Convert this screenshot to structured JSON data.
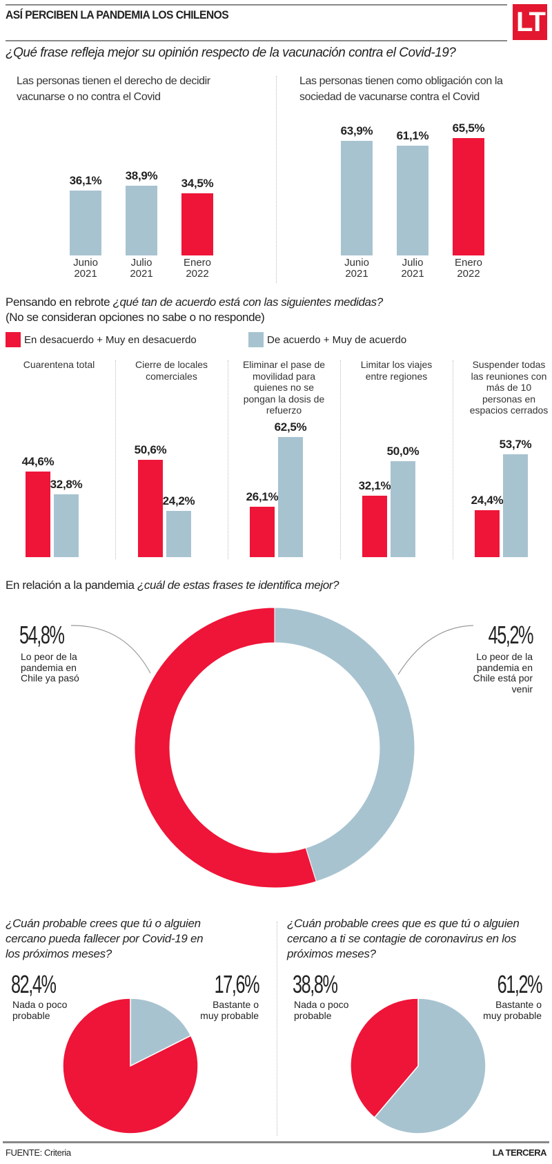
{
  "header": {
    "title": "ASÍ PERCIBEN LA PANDEMIA LOS CHILENOS",
    "logo": "LT"
  },
  "colors": {
    "red": "#ee1538",
    "blue": "#a8c3d0",
    "rule": "#888888"
  },
  "section1": {
    "question": "¿Qué frase refleja mejor su opinión respecto de la vacunación contra el Covid-19?",
    "left_label_1": "Las personas tienen el derecho de decidir",
    "left_label_2": "vacunarse o no contra el Covid",
    "right_label_1": "Las personas tienen como obligación con la",
    "right_label_2": "sociedad de vacunarse contra el Covid"
  },
  "section2": {
    "question_plain": "Pensando en rebrote ",
    "question_italic": "¿qué tan de acuerdo está con las siguientes medidas?",
    "note": "(No se consideran opciones no sabe o no responde)",
    "legend_red": "En desacuerdo + Muy en desacuerdo",
    "legend_blue": "De acuerdo + Muy de acuerdo"
  },
  "section3": {
    "question_plain": "En relación a la pandemia ",
    "question_italic": "¿cuál de estas frases te identifica mejor?"
  },
  "section4": {
    "left_question": "¿Cuán probable crees que tú o alguien cercano pueda fallecer por Covid-19 en los próximos meses?",
    "left_q_lines": [
      "¿Cuán probable crees que tú o alguien",
      "cercano pueda fallecer por Covid-19 en",
      "los próximos meses?"
    ],
    "right_q_lines": [
      "¿Cuán probable crees que es que tú o alguien",
      "cercano a ti se contagie de coronavirus en los",
      "próximos meses?"
    ]
  },
  "footer": {
    "source_label": "FUENTE:",
    "source": "Criteria",
    "brand": "LA TERCERA"
  },
  "chart_data": [
    {
      "type": "bar",
      "title": "Las personas tienen el derecho de decidir vacunarse o no contra el Covid",
      "categories": [
        "Junio 2021",
        "Julio 2021",
        "Enero 2022"
      ],
      "category_lines": [
        [
          "Junio",
          "2021"
        ],
        [
          "Julio",
          "2021"
        ],
        [
          "Enero",
          "2022"
        ]
      ],
      "values": [
        36.1,
        38.9,
        34.5
      ],
      "labels": [
        "36,1%",
        "38,9%",
        "34,5%"
      ],
      "highlight": [
        false,
        false,
        true
      ],
      "ylim": [
        0,
        100
      ]
    },
    {
      "type": "bar",
      "title": "Las personas tienen como obligación con la sociedad de vacunarse contra el Covid",
      "categories": [
        "Junio 2021",
        "Julio 2021",
        "Enero 2022"
      ],
      "category_lines": [
        [
          "Junio",
          "2021"
        ],
        [
          "Julio",
          "2021"
        ],
        [
          "Enero",
          "2022"
        ]
      ],
      "values": [
        63.9,
        61.1,
        65.5
      ],
      "labels": [
        "63,9%",
        "61,1%",
        "65,5%"
      ],
      "highlight": [
        false,
        false,
        true
      ],
      "ylim": [
        0,
        100
      ]
    },
    {
      "type": "bar",
      "title": "Pensando en rebrote ¿qué tan de acuerdo está con las siguientes medidas?",
      "categories": [
        "Cuarentena total",
        "Cierre de locales comerciales",
        "Eliminar el pase de movilidad para quienes no se pongan la dosis de refuerzo",
        "Limitar los viajes entre regiones",
        "Suspender todas las reuniones con más de 10 personas en espacios cerrados"
      ],
      "category_lines": [
        [
          "Cuarentena total"
        ],
        [
          "Cierre de locales",
          "comerciales"
        ],
        [
          "Eliminar el pase de",
          "movilidad para",
          "quienes no se",
          "pongan la dosis de",
          "refuerzo"
        ],
        [
          "Limitar los viajes",
          "entre regiones"
        ],
        [
          "Suspender todas",
          "las reuniones con",
          "más de 10",
          "personas en",
          "espacios cerrados"
        ]
      ],
      "series": [
        {
          "name": "En desacuerdo + Muy en desacuerdo",
          "values": [
            44.6,
            50.6,
            26.1,
            32.1,
            24.4
          ],
          "labels": [
            "44,6%",
            "50,6%",
            "26,1%",
            "32,1%",
            "24,4%"
          ]
        },
        {
          "name": "De acuerdo + Muy de acuerdo",
          "values": [
            32.8,
            24.2,
            62.5,
            50.0,
            53.7
          ],
          "labels": [
            "32,8%",
            "24,2%",
            "62,5%",
            "50,0%",
            "53,7%"
          ]
        }
      ],
      "legend": "top-left",
      "ylim": [
        0,
        100
      ]
    },
    {
      "type": "pie",
      "variant": "donut",
      "title": "En relación a la pandemia ¿cuál de estas frases te identifica mejor?",
      "slices": [
        {
          "label": "Lo peor de la pandemia en Chile ya pasó",
          "label_lines": [
            "Lo peor de la",
            "pandemia en",
            "Chile ya pasó"
          ],
          "value": 54.8,
          "text": "54,8%"
        },
        {
          "label": "Lo peor de la pandemia en Chile está por venir",
          "label_lines": [
            "Lo peor de la",
            "pandemia en",
            "Chile está por",
            "venir"
          ],
          "value": 45.2,
          "text": "45,2%"
        }
      ]
    },
    {
      "type": "pie",
      "title": "¿Cuán probable crees que tú o alguien cercano pueda fallecer por Covid-19 en los próximos meses?",
      "slices": [
        {
          "label": "Nada o poco probable",
          "label_lines": [
            "Nada o poco",
            "probable"
          ],
          "value": 82.4,
          "text": "82,4%"
        },
        {
          "label": "Bastante o muy probable",
          "label_lines": [
            "Bastante o",
            "muy probable"
          ],
          "value": 17.6,
          "text": "17,6%"
        }
      ]
    },
    {
      "type": "pie",
      "title": "¿Cuán probable crees que es que tú o alguien cercano a ti se contagie de coronavirus en los próximos meses?",
      "slices": [
        {
          "label": "Nada o poco probable",
          "label_lines": [
            "Nada o poco",
            "probable"
          ],
          "value": 38.8,
          "text": "38,8%"
        },
        {
          "label": "Bastante o muy probable",
          "label_lines": [
            "Bastante o",
            "muy probable"
          ],
          "value": 61.2,
          "text": "61,2%"
        }
      ]
    }
  ]
}
